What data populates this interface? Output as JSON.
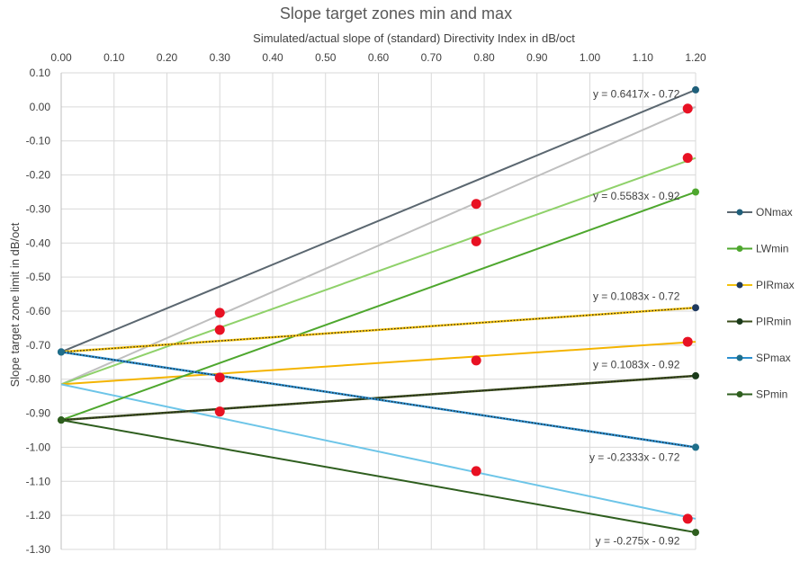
{
  "chart_data": {
    "type": "scatter",
    "title": "Slope target zones min and max",
    "xlabel": "Simulated/actual slope of (standard) Directivity Index in dB/oct",
    "ylabel": "Slope target zone limit in dB/oct",
    "xlim": [
      0,
      1.2
    ],
    "ylim": [
      -1.3,
      0.1
    ],
    "x_ticks": [
      "0.00",
      "0.10",
      "0.20",
      "0.30",
      "0.40",
      "0.50",
      "0.60",
      "0.70",
      "0.80",
      "0.90",
      "1.00",
      "1.10",
      "1.20"
    ],
    "y_ticks": [
      "0.10",
      "0.00",
      "-0.10",
      "-0.20",
      "-0.30",
      "-0.40",
      "-0.50",
      "-0.60",
      "-0.70",
      "-0.80",
      "-0.90",
      "-1.00",
      "-1.10",
      "-1.20",
      "-1.30"
    ],
    "x_axis_position": "top",
    "grid": true,
    "legend_position": "right",
    "series": [
      {
        "name": "ONmax",
        "color": "#1f5f7a",
        "line_color": "#5b6770",
        "style": "solid",
        "x": [
          0,
          1.2
        ],
        "y": [
          -0.72,
          0.05
        ]
      },
      {
        "name": "LWmin",
        "color": "#4ea72e",
        "line_color": "#4ea72e",
        "style": "solid",
        "x": [
          0,
          1.2
        ],
        "y": [
          -0.92,
          -0.25
        ]
      },
      {
        "name": "PIRmax",
        "color": "#1f3a5f",
        "line_color": "#f4c20d",
        "style": "dotted",
        "x": [
          0,
          1.2
        ],
        "y": [
          -0.72,
          -0.59
        ]
      },
      {
        "name": "PIRmin",
        "color": "#1a3a1a",
        "line_color": "#3a4d1a",
        "style": "dotted",
        "x": [
          0,
          1.2
        ],
        "y": [
          -0.92,
          -0.79
        ]
      },
      {
        "name": "SPmax",
        "color": "#1f6f8b",
        "line_color": "#2b8fcf",
        "style": "dotted",
        "x": [
          0,
          1.2
        ],
        "y": [
          -0.72,
          -1.0
        ]
      },
      {
        "name": "SPmin",
        "color": "#2e5e1e",
        "line_color": "#2e5e1e",
        "style": "solid",
        "x": [
          0,
          1.2
        ],
        "y": [
          -0.92,
          -1.25
        ]
      }
    ],
    "extra_lines": [
      {
        "color": "#bfbfbf",
        "x": [
          0,
          1.2
        ],
        "y": [
          -0.815,
          0.0
        ]
      },
      {
        "color": "#8fd16a",
        "x": [
          0,
          1.2
        ],
        "y": [
          -0.815,
          -0.15
        ]
      },
      {
        "color": "#f4b400",
        "x": [
          0,
          1.2
        ],
        "y": [
          -0.815,
          -0.69
        ]
      },
      {
        "color": "#6dc5e8",
        "x": [
          0,
          1.2
        ],
        "y": [
          -0.815,
          -1.21
        ]
      }
    ],
    "red_points": [
      {
        "x": 0.3,
        "y": -0.605
      },
      {
        "x": 0.3,
        "y": -0.655
      },
      {
        "x": 0.3,
        "y": -0.795
      },
      {
        "x": 0.3,
        "y": -0.895
      },
      {
        "x": 0.785,
        "y": -0.285
      },
      {
        "x": 0.785,
        "y": -0.395
      },
      {
        "x": 0.785,
        "y": -0.745
      },
      {
        "x": 0.785,
        "y": -1.07
      },
      {
        "x": 1.185,
        "y": -0.005
      },
      {
        "x": 1.185,
        "y": -0.15
      },
      {
        "x": 1.185,
        "y": -0.69
      },
      {
        "x": 1.185,
        "y": -1.21
      }
    ],
    "trendline_labels": [
      {
        "text": "y = 0.6417x - 0.72",
        "x": 1.17,
        "y": 0.028
      },
      {
        "text": "y = 0.5583x - 0.92",
        "x": 1.17,
        "y": -0.273
      },
      {
        "text": "y = 0.1083x - 0.72",
        "x": 1.17,
        "y": -0.567
      },
      {
        "text": "y = 0.1083x - 0.92",
        "x": 1.17,
        "y": -0.768
      },
      {
        "text": "y = -0.2333x - 0.72",
        "x": 1.17,
        "y": -1.04
      },
      {
        "text": "y = -0.275x - 0.92",
        "x": 1.17,
        "y": -1.285
      }
    ]
  }
}
